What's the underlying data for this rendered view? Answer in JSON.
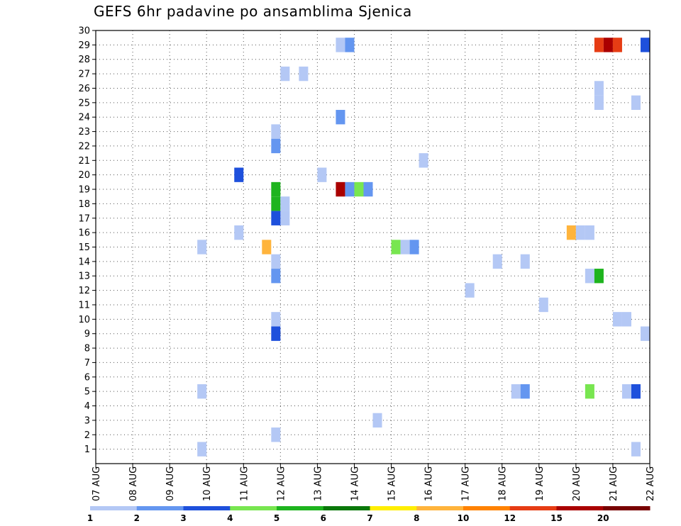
{
  "chart_data": {
    "type": "heatmap",
    "title": "GEFS 6hr padavine po ansamblima Sjenica",
    "xlabel": "",
    "ylabel": "",
    "x_tick_labels": [
      "07 AUG",
      "08 AUG",
      "09 AUG",
      "10 AUG",
      "11 AUG",
      "12 AUG",
      "13 AUG",
      "14 AUG",
      "15 AUG",
      "16 AUG",
      "17 AUG",
      "18 AUG",
      "19 AUG",
      "20 AUG",
      "21 AUG",
      "22 AUG"
    ],
    "y_tick_labels": [
      1,
      2,
      3,
      4,
      5,
      6,
      7,
      8,
      9,
      10,
      11,
      12,
      13,
      14,
      15,
      16,
      17,
      18,
      19,
      20,
      21,
      22,
      23,
      24,
      25,
      26,
      27,
      28,
      29,
      30
    ],
    "xlim": [
      0,
      60
    ],
    "ylim": [
      0,
      30
    ],
    "x_unit": "6-hour steps from 07 AUG 00Z",
    "grid": true,
    "colorbar": {
      "ticks": [
        "1",
        "2",
        "3",
        "4",
        "5",
        "6",
        "7",
        "8",
        "10",
        "12",
        "15",
        "20"
      ],
      "colors": [
        "#b4c8f5",
        "#6496f0",
        "#1e50dc",
        "#78e650",
        "#1eb41e",
        "#0a780a",
        "#ffee00",
        "#ffb43c",
        "#ff8200",
        "#e63c14",
        "#aa0000",
        "#780000"
      ]
    },
    "cells": [
      {
        "t": 26.5,
        "member": 29,
        "bin": 1
      },
      {
        "t": 27.5,
        "member": 29,
        "bin": 2
      },
      {
        "t": 59.5,
        "member": 29,
        "bin": 3
      },
      {
        "t": 54.5,
        "member": 29,
        "bin": 10
      },
      {
        "t": 55.5,
        "member": 29,
        "bin": 11
      },
      {
        "t": 56.5,
        "member": 29,
        "bin": 10
      },
      {
        "t": 20.5,
        "member": 27,
        "bin": 1
      },
      {
        "t": 22.5,
        "member": 27,
        "bin": 1
      },
      {
        "t": 54.5,
        "member": 26,
        "bin": 1
      },
      {
        "t": 54.5,
        "member": 25,
        "bin": 1
      },
      {
        "t": 58.5,
        "member": 25,
        "bin": 1
      },
      {
        "t": 26.5,
        "member": 24,
        "bin": 2
      },
      {
        "t": 19.5,
        "member": 23,
        "bin": 1
      },
      {
        "t": 19.5,
        "member": 22,
        "bin": 2
      },
      {
        "t": 35.5,
        "member": 21,
        "bin": 1
      },
      {
        "t": 15.5,
        "member": 20,
        "bin": 3
      },
      {
        "t": 24.5,
        "member": 20,
        "bin": 1
      },
      {
        "t": 26.5,
        "member": 19,
        "bin": 11
      },
      {
        "t": 27.5,
        "member": 19,
        "bin": 2
      },
      {
        "t": 28.5,
        "member": 19,
        "bin": 4
      },
      {
        "t": 29.5,
        "member": 19,
        "bin": 2
      },
      {
        "t": 19.5,
        "member": 19,
        "bin": 5
      },
      {
        "t": 19.5,
        "member": 18,
        "bin": 5
      },
      {
        "t": 20.5,
        "member": 18,
        "bin": 1
      },
      {
        "t": 20.5,
        "member": 17,
        "bin": 1
      },
      {
        "t": 19.5,
        "member": 17,
        "bin": 3
      },
      {
        "t": 15.5,
        "member": 16,
        "bin": 1
      },
      {
        "t": 51.5,
        "member": 16,
        "bin": 8
      },
      {
        "t": 52.5,
        "member": 16,
        "bin": 1
      },
      {
        "t": 53.5,
        "member": 16,
        "bin": 1
      },
      {
        "t": 11.5,
        "member": 15,
        "bin": 1
      },
      {
        "t": 18.5,
        "member": 15,
        "bin": 8
      },
      {
        "t": 32.5,
        "member": 15,
        "bin": 4
      },
      {
        "t": 33.5,
        "member": 15,
        "bin": 1
      },
      {
        "t": 34.5,
        "member": 15,
        "bin": 2
      },
      {
        "t": 19.5,
        "member": 14,
        "bin": 1
      },
      {
        "t": 43.5,
        "member": 14,
        "bin": 1
      },
      {
        "t": 46.5,
        "member": 14,
        "bin": 1
      },
      {
        "t": 19.5,
        "member": 13,
        "bin": 2
      },
      {
        "t": 53.5,
        "member": 13,
        "bin": 1
      },
      {
        "t": 54.5,
        "member": 13,
        "bin": 5
      },
      {
        "t": 40.5,
        "member": 12,
        "bin": 1
      },
      {
        "t": 48.5,
        "member": 11,
        "bin": 1
      },
      {
        "t": 19.5,
        "member": 10,
        "bin": 1
      },
      {
        "t": 56.5,
        "member": 10,
        "bin": 1
      },
      {
        "t": 57.5,
        "member": 10,
        "bin": 1
      },
      {
        "t": 19.5,
        "member": 9,
        "bin": 3
      },
      {
        "t": 59.5,
        "member": 9,
        "bin": 1
      },
      {
        "t": 11.5,
        "member": 5,
        "bin": 1
      },
      {
        "t": 45.5,
        "member": 5,
        "bin": 1
      },
      {
        "t": 46.5,
        "member": 5,
        "bin": 2
      },
      {
        "t": 53.5,
        "member": 5,
        "bin": 4
      },
      {
        "t": 57.5,
        "member": 5,
        "bin": 1
      },
      {
        "t": 58.5,
        "member": 5,
        "bin": 3
      },
      {
        "t": 30.5,
        "member": 3,
        "bin": 1
      },
      {
        "t": 19.5,
        "member": 2,
        "bin": 1
      },
      {
        "t": 11.5,
        "member": 1,
        "bin": 1
      },
      {
        "t": 58.5,
        "member": 1,
        "bin": 1
      }
    ]
  }
}
